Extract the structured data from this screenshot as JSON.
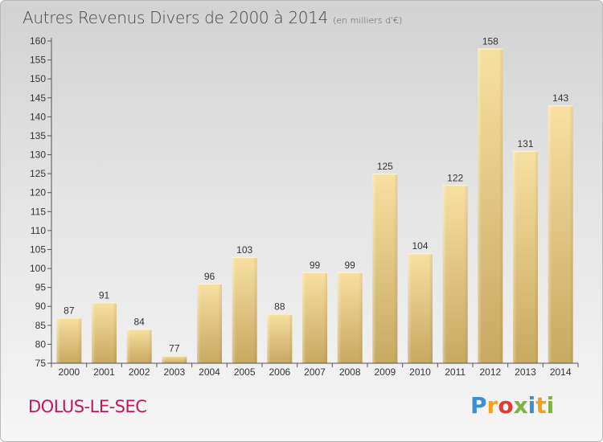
{
  "header": {
    "title": "Autres Revenus Divers de 2000 à 2014",
    "subtitle": "(en milliers d'€)"
  },
  "footer": {
    "commune": "DOLUS-LE-SEC",
    "logo": "Proxiti"
  },
  "colors": {
    "bar_light": "#f7e0a1",
    "bar_dark": "#c7a961",
    "commune": "#c2185b"
  },
  "chart_data": {
    "type": "bar",
    "title": "Autres Revenus Divers de 2000 à 2014",
    "subtitle": "(en milliers d'€)",
    "categories": [
      "2000",
      "2001",
      "2002",
      "2003",
      "2004",
      "2005",
      "2006",
      "2007",
      "2008",
      "2009",
      "2010",
      "2011",
      "2012",
      "2013",
      "2014"
    ],
    "values": [
      87,
      91,
      84,
      77,
      96,
      103,
      88,
      99,
      99,
      125,
      104,
      122,
      158,
      131,
      143
    ],
    "ylim": [
      75,
      160
    ],
    "yticks": [
      75,
      80,
      85,
      90,
      95,
      100,
      105,
      110,
      115,
      120,
      125,
      130,
      135,
      140,
      145,
      150,
      155,
      160
    ],
    "xlabel": "",
    "ylabel": "",
    "grid": false,
    "data_labels": true
  }
}
